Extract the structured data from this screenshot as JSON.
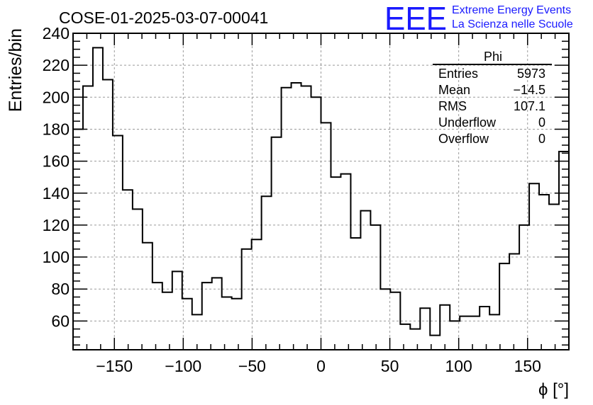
{
  "header": {
    "run_title": "COSE-01-2025-03-07-00041",
    "logo_text": "EEE",
    "logo_line1": "Extreme Energy Events",
    "logo_line2": "La Scienza nelle Scuole",
    "logo_color": "#1a1aff"
  },
  "stats_box": {
    "title": "Phi",
    "rows": [
      {
        "label": "Entries",
        "value": "5973"
      },
      {
        "label": "Mean",
        "value": "−14.5"
      },
      {
        "label": "RMS",
        "value": "107.1"
      },
      {
        "label": "Underflow",
        "value": "0"
      },
      {
        "label": "Overflow",
        "value": "0"
      }
    ]
  },
  "chart_data": {
    "type": "histogram",
    "xlabel": "ϕ [°]",
    "ylabel": "Entries/bin",
    "xlim": [
      -180,
      180
    ],
    "ylim": [
      42,
      240
    ],
    "bin_width": 7.2,
    "bin_edges_start": -180,
    "x_ticks": [
      -150,
      -100,
      -50,
      0,
      50,
      100,
      150
    ],
    "x_tick_labels": [
      "−150",
      "−100",
      "−50",
      "0",
      "50",
      "100",
      "150"
    ],
    "y_ticks": [
      60,
      80,
      100,
      120,
      140,
      160,
      180,
      200,
      220,
      240
    ],
    "y_tick_labels": [
      "60",
      "80",
      "100",
      "120",
      "140",
      "160",
      "180",
      "200",
      "220",
      "240"
    ],
    "grid": true,
    "values": [
      180,
      207,
      231,
      211,
      176,
      142,
      130,
      109,
      84,
      78,
      91,
      74,
      64,
      84,
      87,
      75,
      74,
      105,
      111,
      138,
      175,
      206,
      209,
      207,
      200,
      184,
      150,
      152,
      112,
      129,
      120,
      80,
      78,
      58,
      55,
      68,
      51,
      70,
      60,
      63,
      63,
      69,
      64,
      96,
      102,
      120,
      146,
      139,
      133,
      166
    ]
  }
}
